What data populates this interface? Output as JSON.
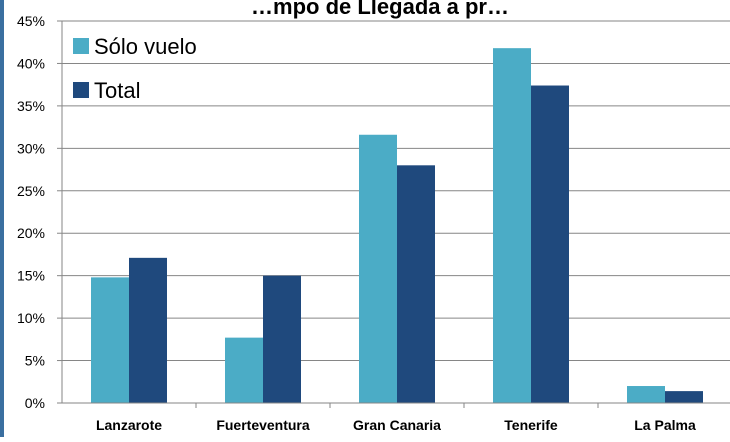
{
  "chart_data": {
    "type": "bar",
    "title": "…mpo de Llegada a pr…",
    "categories": [
      "Lanzarote",
      "Fuerteventura",
      "Gran Canaria",
      "Tenerife",
      "La Palma"
    ],
    "series": [
      {
        "name": "Sólo vuelo",
        "values": [
          14.8,
          7.7,
          31.6,
          41.8,
          2.0
        ]
      },
      {
        "name": "Total",
        "values": [
          17.1,
          15.0,
          28.0,
          37.4,
          1.4
        ]
      }
    ],
    "ylim": [
      0,
      45
    ],
    "yticks": [
      "0%",
      "5%",
      "10%",
      "15%",
      "20%",
      "25%",
      "30%",
      "35%",
      "40%",
      "45%"
    ],
    "ytick_values": [
      0,
      5,
      10,
      15,
      20,
      25,
      30,
      35,
      40,
      45
    ],
    "colors": [
      "#4bacc6",
      "#1f497d"
    ],
    "grid": true,
    "legend_position": "top-left"
  }
}
